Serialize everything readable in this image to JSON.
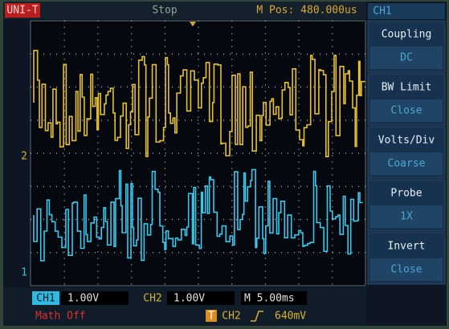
{
  "header": {
    "brand": "UNI-T",
    "status": "Stop",
    "position": "M Pos: 480.000us",
    "channel": "CH1"
  },
  "markers": {
    "ch2": "2",
    "ch1": "1"
  },
  "menu": [
    {
      "title": "Coupling",
      "value": "DC"
    },
    {
      "title": "BW  Limit",
      "value": "Close"
    },
    {
      "title": "Volts/Div",
      "value": "Coarse"
    },
    {
      "title": "Probe",
      "value": "1X"
    },
    {
      "title": "Invert",
      "value": "Close"
    }
  ],
  "footer": {
    "ch1_label": "CH1",
    "ch1_scale": "1.00V",
    "ch2_label": "CH2",
    "ch2_scale": "1.00V",
    "timebase": "M 5.00ms",
    "math": "Math Off",
    "trigger_icon": "T",
    "trigger_source": "CH2",
    "trigger_level": "640mV"
  }
}
